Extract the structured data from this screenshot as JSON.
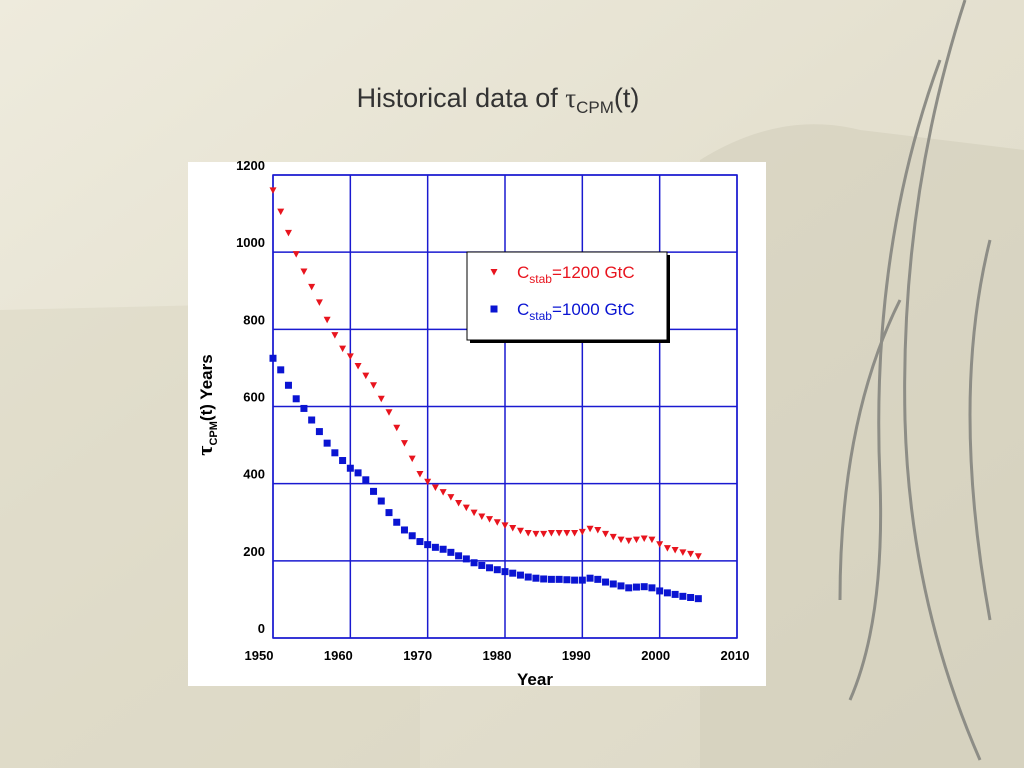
{
  "chart_data": {
    "type": "scatter",
    "title": [
      "Historical data of ",
      "τ",
      "CPM",
      "(t)"
    ],
    "x_label": "Year",
    "y_label": [
      "τ",
      "CPM",
      "(t) Years"
    ],
    "x": [
      1950,
      1951,
      1952,
      1953,
      1954,
      1955,
      1956,
      1957,
      1958,
      1959,
      1960,
      1961,
      1962,
      1963,
      1964,
      1965,
      1966,
      1967,
      1968,
      1969,
      1970,
      1971,
      1972,
      1973,
      1974,
      1975,
      1976,
      1977,
      1978,
      1979,
      1980,
      1981,
      1982,
      1983,
      1984,
      1985,
      1986,
      1987,
      1988,
      1989,
      1990,
      1991,
      1992,
      1993,
      1994,
      1995,
      1996,
      1997,
      1998,
      1999,
      2000,
      2001,
      2002,
      2003,
      2004,
      2005
    ],
    "series": [
      {
        "name": [
          "C",
          "stab",
          "=1200 GtC"
        ],
        "color": "#e8141e",
        "marker": "triangle-down",
        "values": [
          1160,
          1105,
          1050,
          995,
          950,
          910,
          870,
          825,
          785,
          750,
          730,
          705,
          680,
          655,
          620,
          585,
          545,
          505,
          465,
          425,
          405,
          390,
          378,
          365,
          350,
          338,
          325,
          315,
          308,
          300,
          292,
          285,
          278,
          272,
          270,
          270,
          272,
          272,
          272,
          272,
          275,
          283,
          280,
          270,
          262,
          255,
          252,
          255,
          258,
          255,
          243,
          233,
          228,
          222,
          218,
          212
        ]
      },
      {
        "name": [
          "C",
          "stab",
          "=1000 GtC"
        ],
        "color": "#0a14d2",
        "marker": "square",
        "values": [
          725,
          695,
          655,
          620,
          595,
          565,
          535,
          505,
          480,
          460,
          440,
          428,
          410,
          380,
          355,
          325,
          300,
          280,
          265,
          250,
          242,
          235,
          230,
          222,
          213,
          205,
          195,
          188,
          182,
          177,
          172,
          168,
          163,
          158,
          155,
          153,
          152,
          152,
          151,
          150,
          150,
          155,
          152,
          145,
          140,
          135,
          130,
          132,
          133,
          130,
          122,
          117,
          113,
          108,
          105,
          102
        ]
      }
    ],
    "xlim": [
      1950,
      2010
    ],
    "ylim": [
      0,
      1200
    ],
    "xticks": [
      1950,
      1960,
      1970,
      1980,
      1990,
      2000,
      2010
    ],
    "yticks": [
      0,
      200,
      400,
      600,
      800,
      1000,
      1200
    ],
    "grid": true,
    "grid_color": "#1a1ad0",
    "legend": "upper right"
  }
}
